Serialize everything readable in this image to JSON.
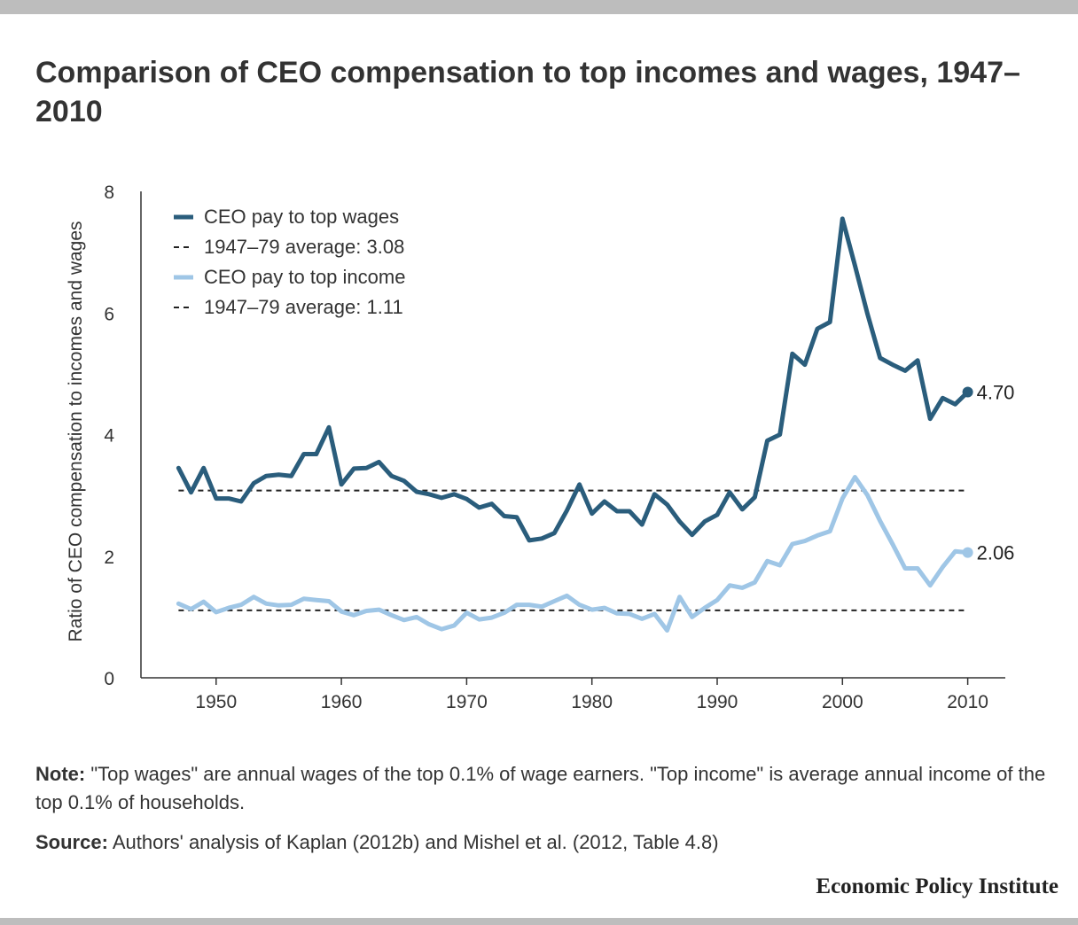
{
  "title": "Comparison of CEO compensation to top incomes and wages, 1947–2010",
  "colors": {
    "dark_series": "#2a5d7c",
    "light_series": "#9fc6e6",
    "average_line": "#222222",
    "axis": "#333333",
    "frame_bar": "#bdbdbd"
  },
  "note_label": "Note:",
  "note_text": " \"Top wages\" are annual wages of the top 0.1% of wage earners. \"Top income\" is average annual income of the top 0.1% of households.",
  "source_label": "Source:",
  "source_text": " Authors' analysis of Kaplan (2012b) and Mishel et al. (2012, Table 4.8)",
  "brand": "Economic Policy Institute",
  "chart_data": {
    "type": "line",
    "title": "Comparison of CEO compensation to top incomes and wages, 1947–2010",
    "xlabel": "",
    "ylabel": "Ratio of CEO compensation to incomes and wages",
    "xlim": [
      1944,
      2013
    ],
    "ylim": [
      0,
      8
    ],
    "x_ticks": [
      1950,
      1960,
      1970,
      1980,
      1990,
      2000,
      2010
    ],
    "y_ticks": [
      0,
      2,
      4,
      6,
      8
    ],
    "grid": false,
    "legend_position": "top-left",
    "legend": [
      {
        "label": "CEO pay to top wages",
        "style": "solid",
        "color": "#2a5d7c"
      },
      {
        "label": "1947–79 average: 3.08",
        "style": "dashed",
        "color": "#222222"
      },
      {
        "label": "CEO pay to top income",
        "style": "solid",
        "color": "#9fc6e6"
      },
      {
        "label": "1947–79 average: 1.11",
        "style": "dashed",
        "color": "#222222"
      }
    ],
    "x": [
      1947,
      1948,
      1949,
      1950,
      1951,
      1952,
      1953,
      1954,
      1955,
      1956,
      1957,
      1958,
      1959,
      1960,
      1961,
      1962,
      1963,
      1964,
      1965,
      1966,
      1967,
      1968,
      1969,
      1970,
      1971,
      1972,
      1973,
      1974,
      1975,
      1976,
      1977,
      1978,
      1979,
      1980,
      1981,
      1982,
      1983,
      1984,
      1985,
      1986,
      1987,
      1988,
      1989,
      1990,
      1991,
      1992,
      1993,
      1994,
      1995,
      1996,
      1997,
      1998,
      1999,
      2000,
      2001,
      2002,
      2003,
      2004,
      2005,
      2006,
      2007,
      2008,
      2009,
      2010
    ],
    "series": [
      {
        "name": "CEO pay to top wages",
        "color": "#2a5d7c",
        "values": [
          3.45,
          3.05,
          3.45,
          2.95,
          2.95,
          2.9,
          3.2,
          3.32,
          3.34,
          3.32,
          3.68,
          3.68,
          4.12,
          3.18,
          3.44,
          3.45,
          3.55,
          3.32,
          3.24,
          3.06,
          3.02,
          2.96,
          3.02,
          2.94,
          2.8,
          2.86,
          2.66,
          2.64,
          2.26,
          2.29,
          2.38,
          2.75,
          3.18,
          2.7,
          2.9,
          2.74,
          2.74,
          2.52,
          3.02,
          2.85,
          2.57,
          2.35,
          2.57,
          2.68,
          3.05,
          2.77,
          2.97,
          3.9,
          4.0,
          5.33,
          5.15,
          5.74,
          5.85,
          7.55,
          6.78,
          5.98,
          5.26,
          5.15,
          5.05,
          5.22,
          4.26,
          4.6,
          4.5,
          4.7
        ],
        "end_label": "4.70"
      },
      {
        "name": "CEO pay to top income",
        "color": "#9fc6e6",
        "values": [
          1.22,
          1.13,
          1.25,
          1.08,
          1.15,
          1.2,
          1.33,
          1.22,
          1.19,
          1.2,
          1.3,
          1.28,
          1.26,
          1.09,
          1.03,
          1.1,
          1.12,
          1.03,
          0.95,
          1.0,
          0.88,
          0.8,
          0.86,
          1.07,
          0.96,
          0.99,
          1.07,
          1.2,
          1.2,
          1.17,
          1.26,
          1.35,
          1.2,
          1.12,
          1.15,
          1.06,
          1.05,
          0.97,
          1.05,
          0.78,
          1.33,
          1.0,
          1.15,
          1.28,
          1.52,
          1.48,
          1.57,
          1.92,
          1.85,
          2.2,
          2.25,
          2.34,
          2.41,
          2.95,
          3.3,
          3.0,
          2.58,
          2.2,
          1.8,
          1.8,
          1.52,
          1.82,
          2.08,
          2.06
        ],
        "end_label": "2.06"
      }
    ],
    "reference_lines": [
      {
        "label": "1947–79 average: 3.08",
        "y": 3.08,
        "x_range": [
          1947,
          2010
        ]
      },
      {
        "label": "1947–79 average: 1.11",
        "y": 1.11,
        "x_range": [
          1947,
          2010
        ]
      }
    ]
  }
}
